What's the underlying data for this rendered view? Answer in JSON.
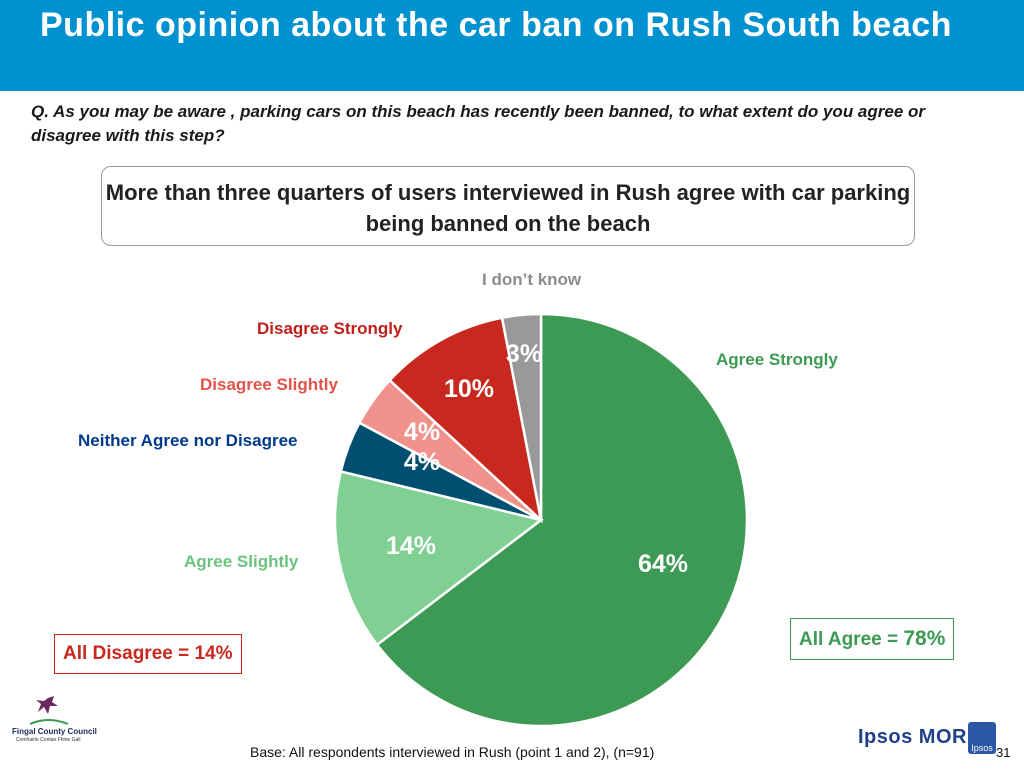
{
  "title": "Public opinion about the car ban on Rush South beach",
  "question": "Q. As you may be aware , parking cars on this beach has recently been banned, to what extent do you agree or disagree with this step?",
  "callout": "More than three quarters of users interviewed in Rush agree with car parking being banned on the beach",
  "summary": {
    "agree_prefix": "All Agree = ",
    "agree_value": "78%",
    "disagree": "All Disagree = 14%"
  },
  "base": "Base: All respondents interviewed in Rush (point 1 and 2), (n=91)",
  "page_number": "31",
  "logos": {
    "fingal_name": "Fingal County Council",
    "fingal_sub": "Comhairle Contae Fhine Gall",
    "ipsos": "Ipsos MORI",
    "ipsos_badge": "Ipsos"
  },
  "colors": {
    "title_bar": "#0092d0",
    "agree": "#2e8b3c",
    "disagree": "#c8281e"
  },
  "chart_data": {
    "type": "pie",
    "slices": [
      {
        "name": "Agree Strongly",
        "value": 64,
        "label": "64%",
        "color": "#3d9a55",
        "label_color": "#3d9a55"
      },
      {
        "name": "Agree Slightly",
        "value": 14,
        "label": "14%",
        "color": "#80cf93",
        "label_color": "#6cc27f"
      },
      {
        "name": "Neither Agree nor Disagree",
        "value": 4,
        "label": "4%",
        "color": "#004f71",
        "label_color": "#003a8c"
      },
      {
        "name": "Disagree Slightly",
        "value": 4,
        "label": "4%",
        "color": "#f0918b",
        "label_color": "#e3534c"
      },
      {
        "name": "Disagree Strongly",
        "value": 10,
        "label": "10%",
        "color": "#c8281e",
        "label_color": "#c0201b"
      },
      {
        "name": "I don’t know",
        "value": 3,
        "label": "3%",
        "color": "#999999",
        "label_color": "#8c8c8c"
      }
    ]
  }
}
